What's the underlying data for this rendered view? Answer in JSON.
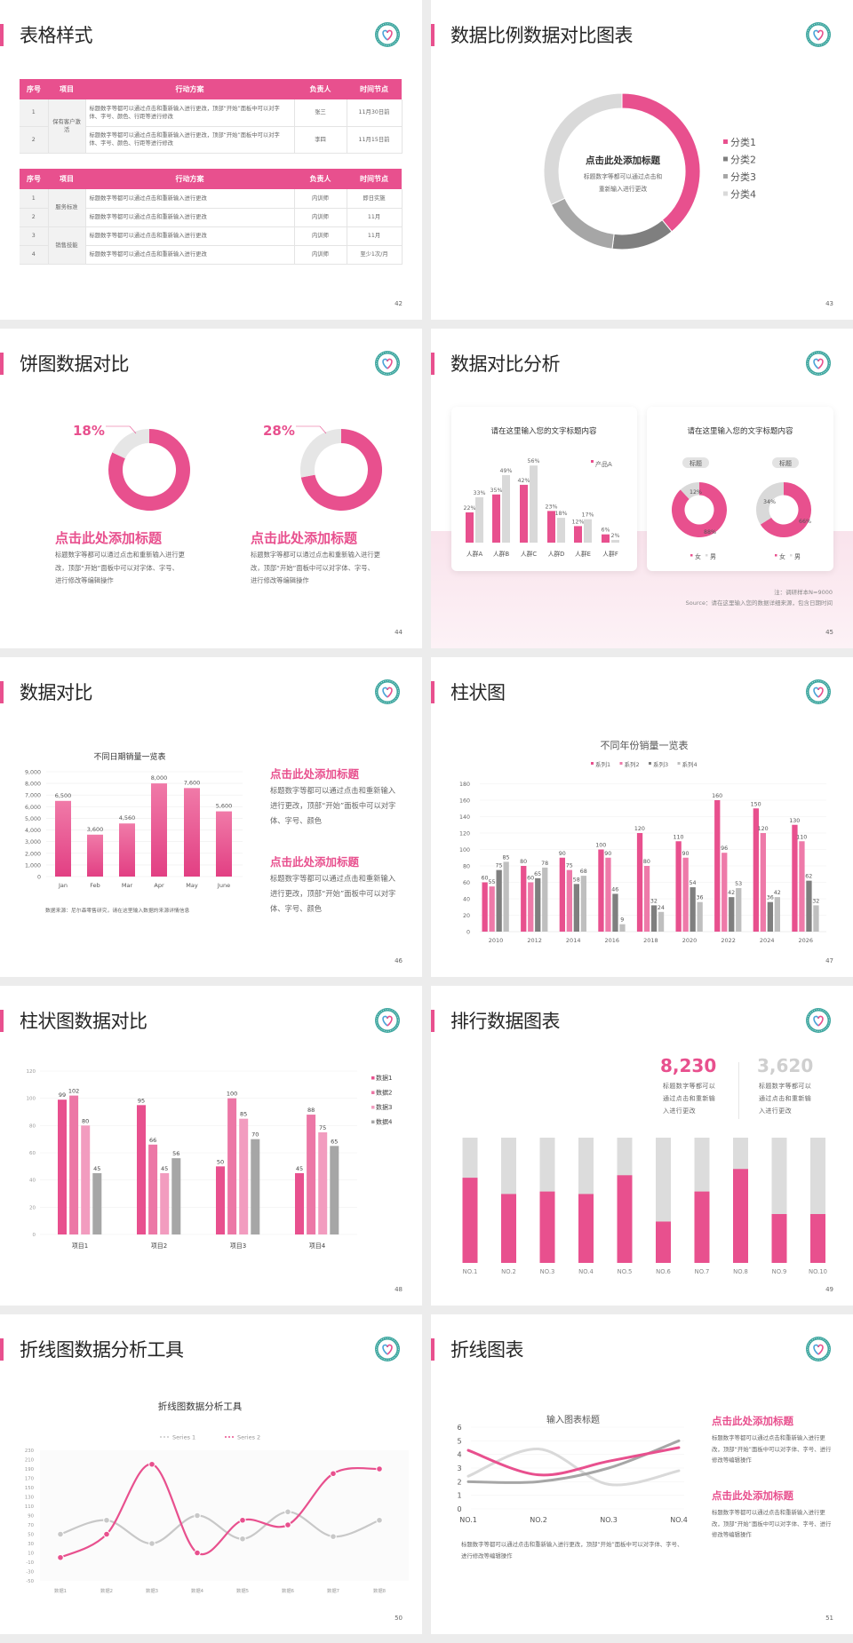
{
  "colors": {
    "accent": "#e8508e",
    "pink2": "#ee7aa9",
    "pink3": "#f29cbf",
    "dark_gray": "#7f7f7f",
    "gray": "#a6a6a6",
    "light_gray": "#d9d9d9",
    "logo_teal": "#3fa7a0"
  },
  "slides": {
    "s42": {
      "title": "表格样式",
      "page": "42",
      "table1": {
        "headers": [
          "序号",
          "项目",
          "行动方案",
          "负责人",
          "时间节点"
        ],
        "groups": [
          {
            "project": "保有客户激活",
            "rows": [
              [
                "1",
                "标题数字等都可以通过点击和重新输入进行更改，顶部“开始”面板中可以对字体、字号、颜色、行距等进行修改",
                "张三",
                "11月30日前"
              ],
              [
                "2",
                "标题数字等都可以通过点击和重新输入进行更改，顶部“开始”面板中可以对字体、字号、颜色、行距等进行修改",
                "李四",
                "11月15日前"
              ]
            ]
          }
        ]
      },
      "table2": {
        "headers": [
          "序号",
          "项目",
          "行动方案",
          "负责人",
          "时间节点"
        ],
        "groups": [
          {
            "project": "服务标准",
            "rows": [
              [
                "1",
                "标题数字等都可以通过点击和重新输入进行更改",
                "内训师",
                "即日实施"
              ],
              [
                "2",
                "标题数字等都可以通过点击和重新输入进行更改",
                "内训师",
                "11月"
              ]
            ]
          },
          {
            "project": "销售技能",
            "rows": [
              [
                "3",
                "标题数字等都可以通过点击和重新输入进行更改",
                "内训师",
                "11月"
              ],
              [
                "4",
                "标题数字等都可以通过点击和重新输入进行更改",
                "内训师",
                "至少1次/月"
              ]
            ]
          }
        ]
      }
    },
    "s43": {
      "title": "数据比例数据对比图表",
      "page": "43",
      "center_title": "点击此处添加标题",
      "center_line1": "标题数字等都可以通过点击和",
      "center_line2": "重新输入进行更改"
    },
    "s44": {
      "title": "饼图数据对比",
      "page": "44",
      "blocks": [
        {
          "heading": "点击此处添加标题",
          "body": "标题数字等都可以通过点击和重新输入进行更改，顶部“开始”面板中可以对字体、字号、进行修改等编辑操作"
        },
        {
          "heading": "点击此处添加标题",
          "body": "标题数字等都可以通过点击和重新输入进行更改，顶部“开始”面板中可以对字体、字号、进行修改等编辑操作"
        }
      ]
    },
    "s45": {
      "title": "数据对比分析",
      "page": "45",
      "card1_title": "请在这里输入您的文字标题内容",
      "card2_title": "请在这里输入您的文字标题内容",
      "note": "注：调研样本N=9000",
      "source": "Source：请在这里输入您的数据详细来源，包含日期时间"
    },
    "s46": {
      "title": "数据对比",
      "page": "46",
      "blocks": [
        {
          "heading": "点击此处添加标题",
          "body": "标题数字等都可以通过点击和重新输入进行更改，顶部“开始”面板中可以对字体、字号、颜色"
        },
        {
          "heading": "点击此处添加标题",
          "body": "标题数字等都可以通过点击和重新输入进行更改，顶部“开始”面板中可以对字体、字号、颜色"
        }
      ]
    },
    "s47": {
      "title": "柱状图",
      "page": "47"
    },
    "s48": {
      "title": "柱状图数据对比",
      "page": "48"
    },
    "s49": {
      "title": "排行数据图表",
      "page": "49",
      "stat1": {
        "value": "8,230",
        "text": "标题数字等都可以通过点击和重新输入进行更改"
      },
      "stat2": {
        "value": "3,620",
        "text": "标题数字等都可以通过点击和重新输入进行更改"
      }
    },
    "s50": {
      "title": "折线图数据分析工具",
      "page": "50"
    },
    "s51": {
      "title": "折线图表",
      "page": "51",
      "caption": "标题数字等都可以通过点击和重新输入进行更改，顶部“开始”面板中可以对字体、字号、进行修改等编辑操作",
      "blocks": [
        {
          "heading": "点击此处添加标题",
          "body": "标题数字等都可以通过点击和重新输入进行更改，顶部“开始”面板中可以对字体、字号、进行修改等编辑操作"
        },
        {
          "heading": "点击此处添加标题",
          "body": "标题数字等都可以通过点击和重新输入进行更改，顶部“开始”面板中可以对字体、字号、进行修改等编辑操作"
        }
      ]
    }
  },
  "chart_data": [
    {
      "type": "pie",
      "slide": "43",
      "categories": [
        "分类1",
        "分类2",
        "分类3",
        "分类4"
      ],
      "values": [
        39,
        13,
        16,
        32
      ],
      "colors": [
        "#e8508e",
        "#7f7f7f",
        "#a6a6a6",
        "#d9d9d9"
      ],
      "legend": "right"
    },
    {
      "type": "pie",
      "slide": "44",
      "label": "18%",
      "values": [
        82,
        18
      ],
      "colors": [
        "#e8508e",
        "#e6e6e6"
      ]
    },
    {
      "type": "pie",
      "slide": "44",
      "label": "28%",
      "values": [
        72,
        28
      ],
      "colors": [
        "#e8508e",
        "#e6e6e6"
      ]
    },
    {
      "type": "bar",
      "slide": "45",
      "categories": [
        "人群A",
        "人群B",
        "人群C",
        "人群D",
        "人群E",
        "人群F"
      ],
      "series": [
        {
          "name": "产品A",
          "values": [
            22,
            35,
            42,
            23,
            12,
            6
          ],
          "color": "#e8508e"
        },
        {
          "values": [
            33,
            49,
            56,
            18,
            17,
            2
          ],
          "color": "#d9d9d9"
        }
      ],
      "unit": "%",
      "legend": "top-right"
    },
    {
      "type": "pie",
      "slide": "45",
      "title": "标题",
      "categories": [
        "女",
        "男"
      ],
      "values": [
        88,
        12
      ],
      "labels": [
        "88%",
        "12%"
      ],
      "colors": [
        "#e8508e",
        "#d9d9d9"
      ]
    },
    {
      "type": "pie",
      "slide": "45",
      "title": "标题",
      "categories": [
        "女",
        "男"
      ],
      "values": [
        66,
        34
      ],
      "labels": [
        "66%",
        "34%"
      ],
      "colors": [
        "#e8508e",
        "#d9d9d9"
      ]
    },
    {
      "type": "bar",
      "slide": "46",
      "title": "不同日期销量一览表",
      "categories": [
        "Jan",
        "Feb",
        "Mar",
        "Apr",
        "May",
        "June"
      ],
      "values": [
        6500,
        3600,
        4560,
        8000,
        7600,
        5600
      ],
      "value_labels": [
        "6,500",
        "3,600",
        "4,560",
        "8,000",
        "7,600",
        "5,600"
      ],
      "ylim": [
        0,
        9000
      ],
      "yticks": [
        "0",
        "1,000",
        "2,000",
        "3,000",
        "4,000",
        "5,000",
        "6,000",
        "7,000",
        "8,000",
        "9,000"
      ],
      "grid": true,
      "source": "数据来源：尼尔森零售研究，请在这里输入数据的来源详情信息"
    },
    {
      "type": "bar",
      "slide": "47",
      "title": "不同年份销量一览表",
      "categories": [
        "2010",
        "2012",
        "2014",
        "2016",
        "2018",
        "2020",
        "2022",
        "2024",
        "2026"
      ],
      "series": [
        {
          "name": "系列1",
          "values": [
            60,
            80,
            90,
            100,
            120,
            110,
            160,
            150,
            130
          ],
          "color": "#e8508e"
        },
        {
          "name": "系列2",
          "values": [
            55,
            60,
            75,
            90,
            80,
            90,
            96,
            120,
            110
          ],
          "color": "#ee7aa9"
        },
        {
          "name": "系列3",
          "values": [
            75,
            65,
            58,
            46,
            32,
            54,
            42,
            36,
            62
          ],
          "color": "#7f7f7f"
        },
        {
          "name": "系列4",
          "values": [
            85,
            78,
            68,
            9,
            24,
            36,
            53,
            42,
            32
          ],
          "color": "#bfbfbf"
        }
      ],
      "ylim": [
        0,
        180
      ],
      "yticks": [
        "0",
        "20",
        "40",
        "60",
        "80",
        "100",
        "120",
        "140",
        "160",
        "180"
      ],
      "grid": true,
      "legend": "top"
    },
    {
      "type": "bar",
      "slide": "48",
      "categories": [
        "项目1",
        "项目2",
        "项目3",
        "项目4"
      ],
      "series": [
        {
          "name": "数据1",
          "values": [
            99,
            95,
            50,
            45
          ],
          "color": "#e8508e"
        },
        {
          "name": "数据2",
          "values": [
            102,
            66,
            100,
            88
          ],
          "color": "#ec77a6"
        },
        {
          "name": "数据3",
          "values": [
            80,
            45,
            85,
            75
          ],
          "color": "#f29cbf"
        },
        {
          "name": "数据4",
          "values": [
            45,
            56,
            70,
            65
          ],
          "color": "#a6a6a6"
        }
      ],
      "ylim": [
        0,
        120
      ],
      "yticks": [
        "0",
        "20",
        "40",
        "60",
        "80",
        "100",
        "120"
      ],
      "grid": true,
      "legend": "right"
    },
    {
      "type": "bar",
      "slide": "49",
      "categories": [
        "NO.1",
        "NO.2",
        "NO.3",
        "NO.4",
        "NO.5",
        "NO.6",
        "NO.7",
        "NO.8",
        "NO.9",
        "NO.10"
      ],
      "values": [
        0.68,
        0.55,
        0.57,
        0.55,
        0.7,
        0.33,
        0.57,
        0.75,
        0.39,
        0.39
      ],
      "ylim": [
        0,
        1
      ]
    },
    {
      "type": "line",
      "slide": "50",
      "title": "折线图数据分析工具",
      "categories": [
        "数据1",
        "数据2",
        "数据3",
        "数据4",
        "数据5",
        "数据6",
        "数据7",
        "数据8"
      ],
      "series": [
        {
          "name": "Series 1",
          "values": [
            50,
            80,
            30,
            90,
            40,
            98,
            45,
            80
          ],
          "color": "#c8c8c8"
        },
        {
          "name": "Series 2",
          "values": [
            0,
            50,
            200,
            10,
            80,
            70,
            180,
            190
          ],
          "color": "#e8508e"
        }
      ],
      "ylim": [
        -50,
        230
      ],
      "yticks": [
        "-50",
        "-30",
        "-10",
        "10",
        "30",
        "50",
        "70",
        "90",
        "110",
        "130",
        "150",
        "170",
        "190",
        "210",
        "230"
      ],
      "legend": "top"
    },
    {
      "type": "line",
      "slide": "51",
      "title": "输入图表标题",
      "categories": [
        "NO.1",
        "NO.2",
        "NO.3",
        "NO.4"
      ],
      "series": [
        {
          "values": [
            4.3,
            2.5,
            3.5,
            4.5
          ],
          "color": "#e8508e"
        },
        {
          "values": [
            2.0,
            2.0,
            3.0,
            5.0
          ],
          "color": "#a6a6a6"
        },
        {
          "values": [
            2.4,
            4.4,
            1.8,
            2.8
          ],
          "color": "#d9d9d9"
        }
      ],
      "ylim": [
        0,
        6
      ],
      "yticks": [
        "0",
        "1",
        "2",
        "3",
        "4",
        "5",
        "6"
      ],
      "grid": true
    }
  ]
}
